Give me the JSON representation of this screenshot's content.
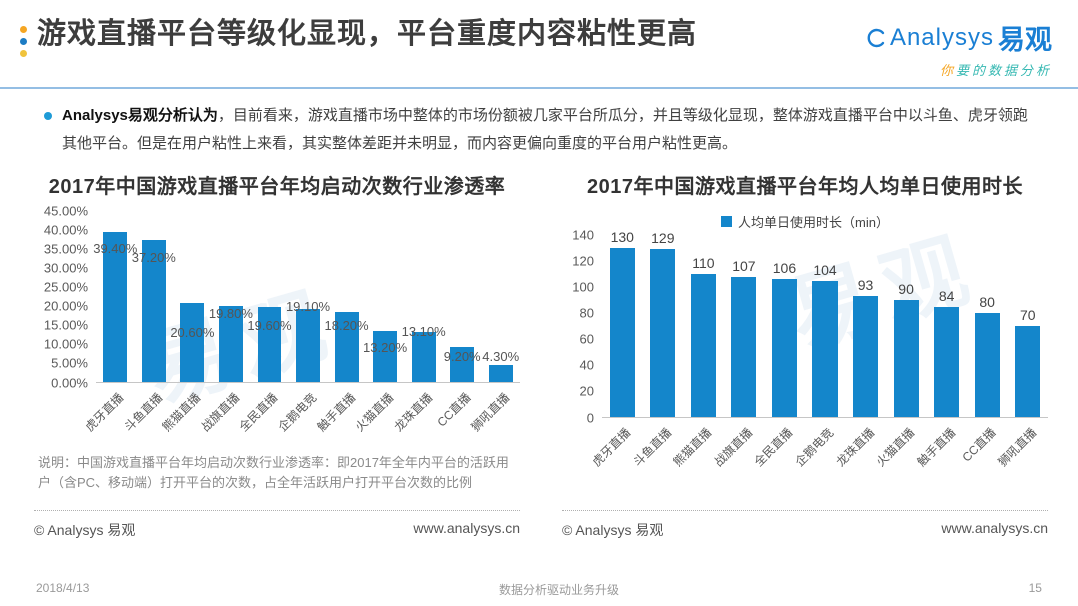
{
  "header": {
    "title": "游戏直播平台等级化显现，平台重度内容粘性更高",
    "logo": {
      "brand": "Analysys",
      "brand_cn": "易观",
      "tagline_first": "你",
      "tagline_rest": "要的数据分析"
    }
  },
  "summary": {
    "lead": "Analysys易观分析认为",
    "body": "，目前看来，游戏直播市场中整体的市场份额被几家平台所瓜分，并且等级化显现，整体游戏直播平台中以斗鱼、虎牙领跑其他平台。但是在用户粘性上来看，其实整体差距并未明显，而内容更偏向重度的平台用户粘性更高。"
  },
  "branding": {
    "copyright": "© Analysys 易观",
    "website": "www.analysys.cn"
  },
  "chart_data": [
    {
      "type": "bar",
      "title": "2017年中国游戏直播平台年均启动次数行业渗透率",
      "categories": [
        "虎牙直播",
        "斗鱼直播",
        "熊猫直播",
        "战旗直播",
        "全民直播",
        "企鹅电竞",
        "触手直播",
        "火猫直播",
        "龙珠直播",
        "CC直播",
        "狮吼直播"
      ],
      "values": [
        39.4,
        37.2,
        20.6,
        19.8,
        19.6,
        19.1,
        18.2,
        13.2,
        13.1,
        9.2,
        4.3
      ],
      "labels": [
        "39.40%",
        "37.20%",
        "20.60%",
        "19.80%",
        "19.60%",
        "19.10%",
        "18.20%",
        "13.20%",
        "13.10%",
        "9.20%",
        "4.30%"
      ],
      "ylim": [
        0,
        45
      ],
      "ytick_labels": [
        "45.00%",
        "40.00%",
        "35.00%",
        "30.00%",
        "25.00%",
        "20.00%",
        "15.00%",
        "10.00%",
        "5.00%",
        "0.00%"
      ],
      "label_offsets": [
        -25,
        -26,
        -38,
        -16,
        -27,
        -6,
        -22,
        -25,
        -8,
        -18,
        0
      ],
      "bar_color": "#1486CB",
      "grid": false,
      "legend_position": "none",
      "xlabel": "",
      "ylabel": "",
      "note": "说明：中国游戏直播平台年均启动次数行业渗透率：即2017年全年内平台的活跃用户（含PC、移动端）打开平台的次数，占全年活跃用户打开平台次数的比例",
      "watermark": "易观"
    },
    {
      "type": "bar",
      "title": "2017年中国游戏直播平台年均人均单日使用时长",
      "legend": "人均单日使用时长（min）",
      "legend_position": "top",
      "categories": [
        "虎牙直播",
        "斗鱼直播",
        "熊猫直播",
        "战旗直播",
        "全民直播",
        "企鹅电竞",
        "龙珠直播",
        "火猫直播",
        "触手直播",
        "CC直播",
        "狮吼直播"
      ],
      "values": [
        130,
        129,
        110,
        107,
        106,
        104,
        93,
        90,
        84,
        80,
        70
      ],
      "labels": [
        "130",
        "129",
        "110",
        "107",
        "106",
        "104",
        "93",
        "90",
        "84",
        "80",
        "70"
      ],
      "ylim": [
        0,
        140
      ],
      "ytick_labels": [
        "140",
        "120",
        "100",
        "80",
        "60",
        "40",
        "20",
        "0"
      ],
      "bar_color": "#1486CB",
      "grid": false,
      "xlabel": "",
      "ylabel": "",
      "watermark": "易观"
    }
  ],
  "footer": {
    "date": "2018/4/13",
    "slogan": "数据分析驱动业务升级",
    "page": "15"
  }
}
